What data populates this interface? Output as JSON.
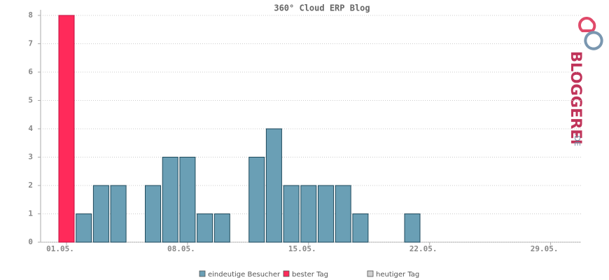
{
  "chart_data": {
    "type": "bar",
    "title": "360° Cloud ERP Blog",
    "categories": [
      "01.05.",
      null,
      null,
      null,
      null,
      null,
      null,
      "08.05.",
      null,
      null,
      null,
      null,
      null,
      null,
      "15.05.",
      null,
      null,
      null,
      null,
      null,
      null,
      "22.05.",
      null,
      null,
      null,
      null,
      null,
      null,
      "29.05.",
      null
    ],
    "series": [
      {
        "name": "eindeutige Besucher",
        "color": "#6a9fb5",
        "values": [
          null,
          1,
          2,
          2,
          0,
          2,
          3,
          3,
          1,
          1,
          0,
          3,
          4,
          2,
          2,
          2,
          2,
          1,
          0,
          0,
          1,
          0,
          0,
          0,
          0,
          0,
          0,
          0,
          0,
          0
        ]
      },
      {
        "name": "bester Tag",
        "color": "#ff2a5a",
        "values": [
          8,
          null,
          null,
          null,
          null,
          null,
          null,
          null,
          null,
          null,
          null,
          null,
          null,
          null,
          null,
          null,
          null,
          null,
          null,
          null,
          null,
          null,
          null,
          null,
          null,
          null,
          null,
          null,
          null,
          null
        ]
      },
      {
        "name": "heutiger Tag",
        "color": "#d0d0d0",
        "values": [
          null,
          null,
          null,
          null,
          null,
          null,
          null,
          null,
          null,
          null,
          null,
          null,
          null,
          null,
          null,
          null,
          null,
          null,
          null,
          null,
          null,
          null,
          null,
          null,
          null,
          null,
          null,
          null,
          null,
          null
        ]
      }
    ],
    "ylim": [
      0,
      8
    ],
    "yticks": [
      0,
      1,
      2,
      3,
      4,
      5,
      6,
      7,
      8
    ],
    "grid": true,
    "legend": "bottom"
  },
  "logo": {
    "text": "BLOGGEREI",
    "suffix": ".DE"
  }
}
